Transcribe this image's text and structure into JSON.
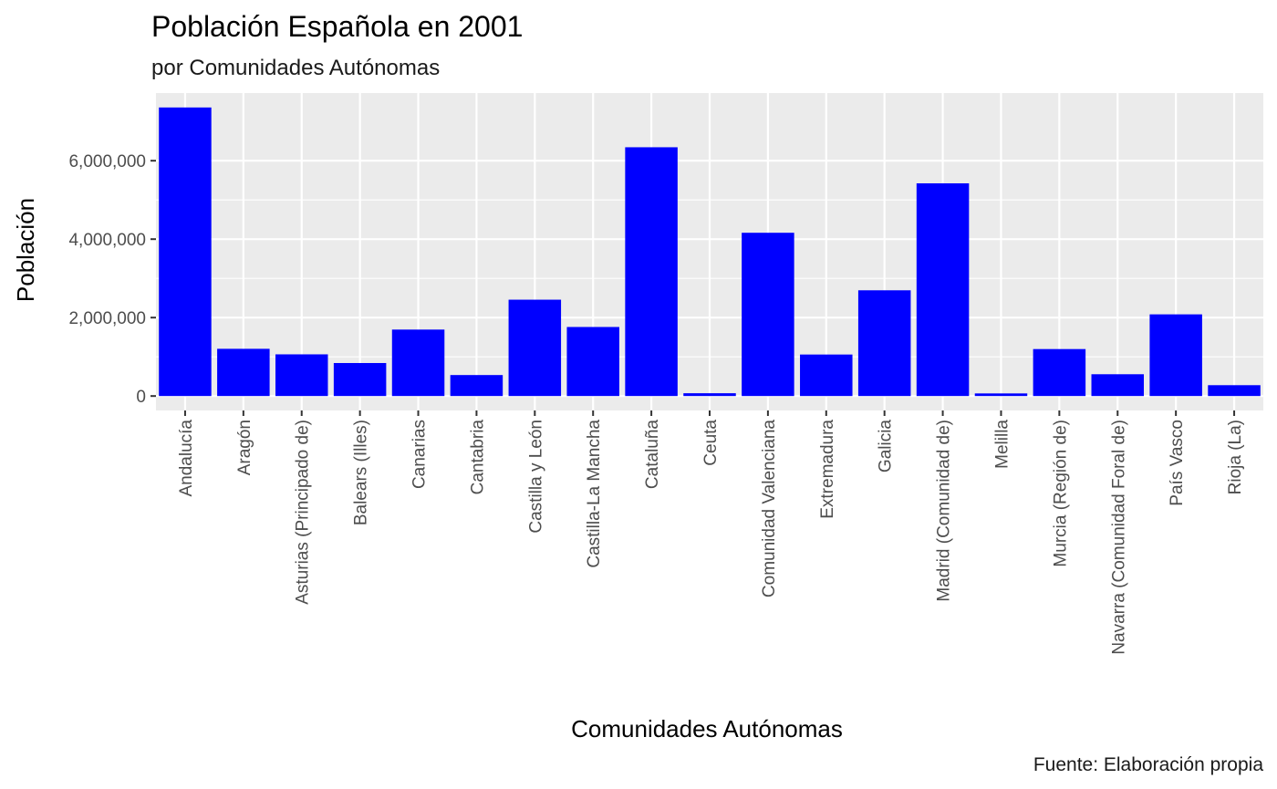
{
  "chart_data": {
    "type": "bar",
    "title": "Población Española en 2001",
    "subtitle": "por Comunidades Autónomas",
    "xlabel": "Comunidades Autónomas",
    "ylabel": "Población",
    "caption": "Fuente: Elaboración propia",
    "categories": [
      "Andalucía",
      "Aragón",
      "Asturias (Principado de)",
      "Balears (Illes)",
      "Canarias",
      "Cantabria",
      "Castilla y León",
      "Castilla-La Mancha",
      "Cataluña",
      "Ceuta",
      "Comunidad Valenciana",
      "Extremadura",
      "Galicia",
      "Madrid (Comunidad de)",
      "Melilla",
      "Murcia (Región de)",
      "Navarra (Comunidad Foral de)",
      "País Vasco",
      "Rioja (La)"
    ],
    "values": [
      7357558,
      1204215,
      1062998,
      841669,
      1694477,
      535131,
      2456474,
      1760516,
      6343110,
      71505,
      4162776,
      1058503,
      2695880,
      5423384,
      66411,
      1197646,
      555829,
      2082587,
      276702
    ],
    "yticks": [
      0,
      2000000,
      4000000,
      6000000
    ],
    "ytick_labels": [
      "0",
      "2,000,000",
      "4,000,000",
      "6,000,000"
    ],
    "ylim": [
      -367878,
      7725436
    ],
    "grid": true,
    "bar_color": "#0000FF",
    "panel_color": "#EBEBEB",
    "grid_color": "#FFFFFF"
  }
}
